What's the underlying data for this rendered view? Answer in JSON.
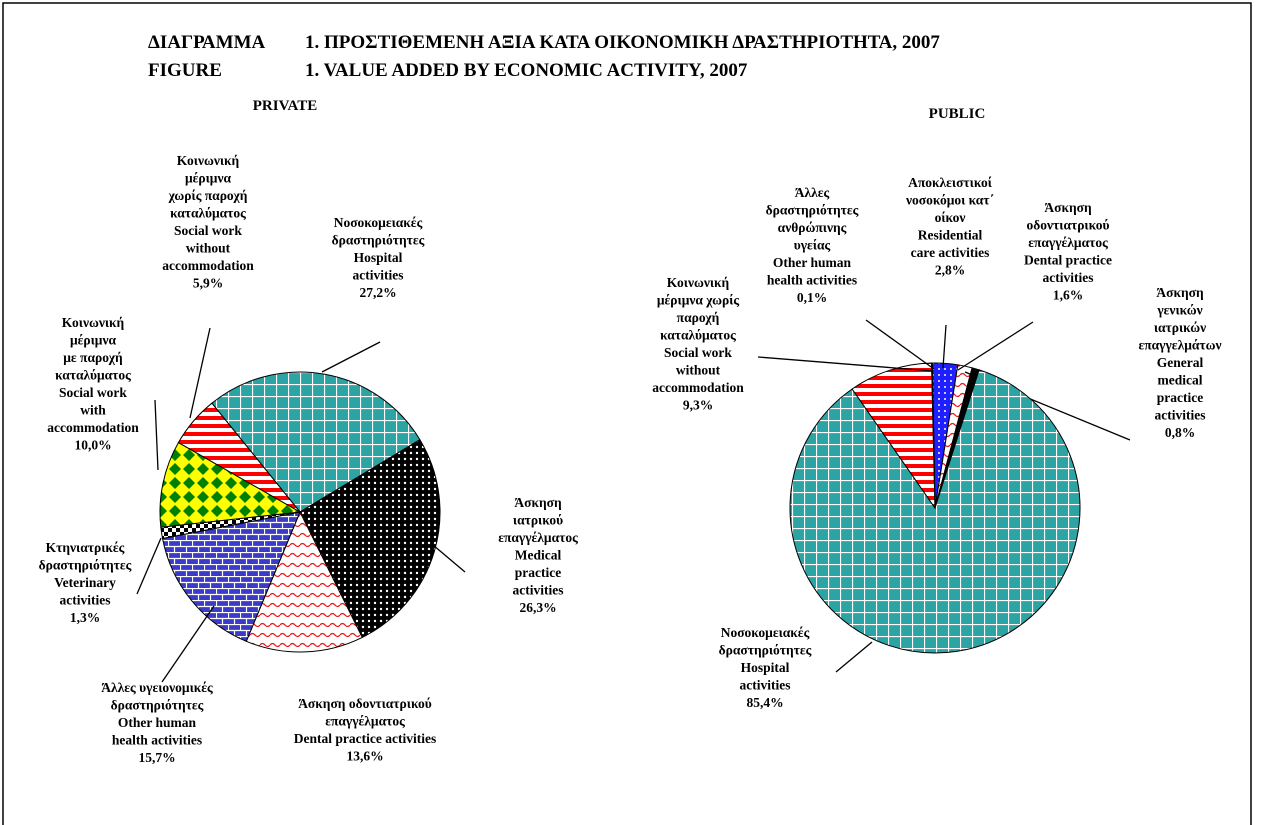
{
  "title": [
    [
      "ΔΙΑΓΡΑΜΜΑ",
      "1. ΠΡΟΣΤΙΘΕΜΕΝΗ ΑΞΙΑ ΚΑΤΑ ΟΙΚΟΝΟΜΙΚΗ ΔΡΑΣΤΗΡΙΟΤΗΤΑ, 2007"
    ],
    [
      "FIGURE",
      "1. VALUE ADDED BY ECONOMIC ACTIVITY, 2007"
    ]
  ],
  "chart_data": [
    {
      "type": "pie",
      "title": "PRIVATE",
      "categories": [
        [
          "Νοσοκομειακές",
          "δραστηριότητες",
          "Hospital",
          "activities"
        ],
        [
          "Άσκηση",
          "ιατρικού",
          "επαγγέλματος",
          "Medical",
          "practice",
          "activities"
        ],
        [
          "Άσκηση οδοντιατρικού",
          "επαγγέλματος",
          "Dental practice activities"
        ],
        [
          "Άλλες υγειονομικές",
          "δραστηριότητες",
          "Other human",
          "health activities"
        ],
        [
          "Κτηνιατρικές",
          "δραστηριότητες",
          "Veterinary",
          "activities"
        ],
        [
          "Κοινωνική",
          "μέριμνα",
          "με παροχή",
          "καταλύματος",
          "Social work",
          "with",
          "accommodation"
        ],
        [
          "Κοινωνική",
          "μέριμνα",
          "χωρίς παροχή",
          "καταλύματος",
          "Social work",
          "without",
          "accommodation"
        ]
      ],
      "values": [
        27.2,
        26.3,
        13.6,
        15.7,
        1.3,
        10.0,
        5.9
      ],
      "value_labels": [
        "27,2%",
        "26,3%",
        "13,6%",
        "15,7%",
        "1,3%",
        "10,0%",
        "5,9%"
      ],
      "colors": [
        "#2ca4a4",
        "#000000",
        "#e41a1c",
        "#3b3bc8",
        "#000000",
        "#ffff00",
        "#ff0000"
      ],
      "patterns": [
        "grid",
        "dots",
        "wave",
        "brick",
        "check",
        "diamond",
        "stripes"
      ]
    },
    {
      "type": "pie",
      "title": "PUBLIC",
      "categories": [
        [
          "Αποκλειστικοί",
          "νοσοκόμοι κατ΄",
          "οίκον",
          "Residential",
          "care activities"
        ],
        [
          "Άσκηση",
          "οδοντιατρικού",
          "επαγγέλματος",
          "Dental practice",
          "activities"
        ],
        [
          "Άσκηση",
          "γενικών",
          "ιατρικών",
          "επαγγελμάτων",
          "General",
          "medical",
          "practice",
          "activities"
        ],
        [
          "Νοσοκομειακές",
          "δραστηριότητες",
          "Hospital",
          "activities"
        ],
        [
          "Κοινωνική",
          "μέριμνα χωρίς",
          "παροχή",
          "καταλύματος",
          "Social work",
          "without",
          "accommodation"
        ],
        [
          "Άλλες",
          "δραστηριότητες",
          "ανθρώπινης",
          "υγείας",
          "Other human",
          "health activities"
        ]
      ],
      "values": [
        2.8,
        1.6,
        0.8,
        85.4,
        9.3,
        0.1
      ],
      "value_labels": [
        "2,8%",
        "1,6%",
        "0,8%",
        "85,4%",
        "9,3%",
        "0,1%"
      ],
      "colors": [
        "#1f1fff",
        "#e41a1c",
        "#000000",
        "#2ca4a4",
        "#ff0000",
        "#000000"
      ],
      "patterns": [
        "bluedots",
        "wave",
        "solid",
        "grid",
        "stripes",
        "solid"
      ]
    }
  ]
}
